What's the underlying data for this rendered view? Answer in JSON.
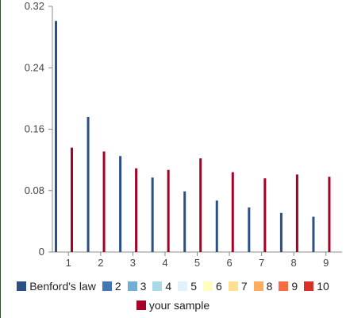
{
  "chart_data": {
    "type": "bar",
    "categories": [
      "1",
      "2",
      "3",
      "4",
      "5",
      "6",
      "7",
      "8",
      "9"
    ],
    "series": [
      {
        "name": "Benford's law",
        "values": [
          0.301,
          0.176,
          0.125,
          0.097,
          0.079,
          0.067,
          0.058,
          0.051,
          0.046
        ]
      },
      {
        "name": "your sample",
        "values": [
          0.136,
          0.131,
          0.109,
          0.107,
          0.122,
          0.104,
          0.096,
          0.101,
          0.098
        ]
      }
    ],
    "ylim": [
      0,
      0.32
    ],
    "yticks": [
      "0",
      "0.08",
      "0.16",
      "0.24",
      "0.32"
    ],
    "legend": [
      {
        "label": "Benford's law",
        "color": "#2c4f86"
      },
      {
        "label": "2",
        "color": "#4575b4"
      },
      {
        "label": "3",
        "color": "#74add1"
      },
      {
        "label": "4",
        "color": "#abd9e9"
      },
      {
        "label": "5",
        "color": "#e0f3f8"
      },
      {
        "label": "6",
        "color": "#ffffbf"
      },
      {
        "label": "7",
        "color": "#fee090"
      },
      {
        "label": "8",
        "color": "#fdae61"
      },
      {
        "label": "9",
        "color": "#f46d43"
      },
      {
        "label": "10",
        "color": "#d73027"
      },
      {
        "label": "your sample",
        "color": "#a50026"
      }
    ],
    "colors": {
      "series_1": "#2c4f86",
      "series_2": "#a50026",
      "axis": "#8c8c8c",
      "grid": "#cfcfcf"
    }
  }
}
